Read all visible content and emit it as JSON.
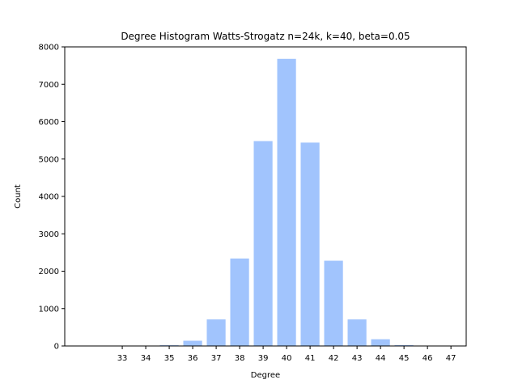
{
  "chart_data": {
    "type": "bar",
    "title": "Degree Histogram Watts-Strogatz n=24k, k=40, beta=0.05",
    "xlabel": "Degree",
    "ylabel": "Count",
    "categories": [
      "33",
      "34",
      "35",
      "36",
      "37",
      "38",
      "39",
      "40",
      "41",
      "42",
      "43",
      "44",
      "45",
      "46",
      "47"
    ],
    "values": [
      0,
      3,
      20,
      140,
      710,
      2340,
      5480,
      7680,
      5440,
      2280,
      710,
      180,
      25,
      3,
      0
    ],
    "y_ticks": [
      "0",
      "1000",
      "2000",
      "3000",
      "4000",
      "5000",
      "6000",
      "7000",
      "8000"
    ],
    "ylim": [
      0,
      8000
    ],
    "grid": false,
    "bar_color": "#a1c4fd"
  }
}
